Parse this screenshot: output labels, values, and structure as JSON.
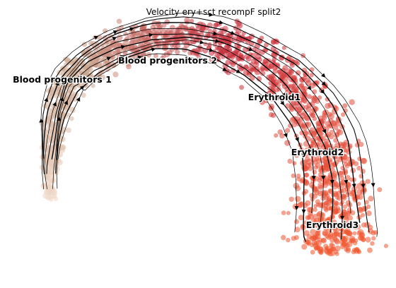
{
  "chart_data": {
    "type": "scatter",
    "title": "Velocity ery+sct recompF split2",
    "xlabel": "",
    "ylabel": "",
    "axes_visible": false,
    "grid": false,
    "legend": "none",
    "overlay": "velocity-streamlines",
    "clusters": [
      {
        "name": "Blood progenitors 1",
        "color": "#f1d8c8"
      },
      {
        "name": "Blood progenitors 2",
        "color": "#c9a58e"
      },
      {
        "name": "Erythroid1",
        "color": "#c42535"
      },
      {
        "name": "Erythroid2",
        "color": "#e3503e"
      },
      {
        "name": "Erythroid3",
        "color": "#f1582e"
      }
    ]
  }
}
